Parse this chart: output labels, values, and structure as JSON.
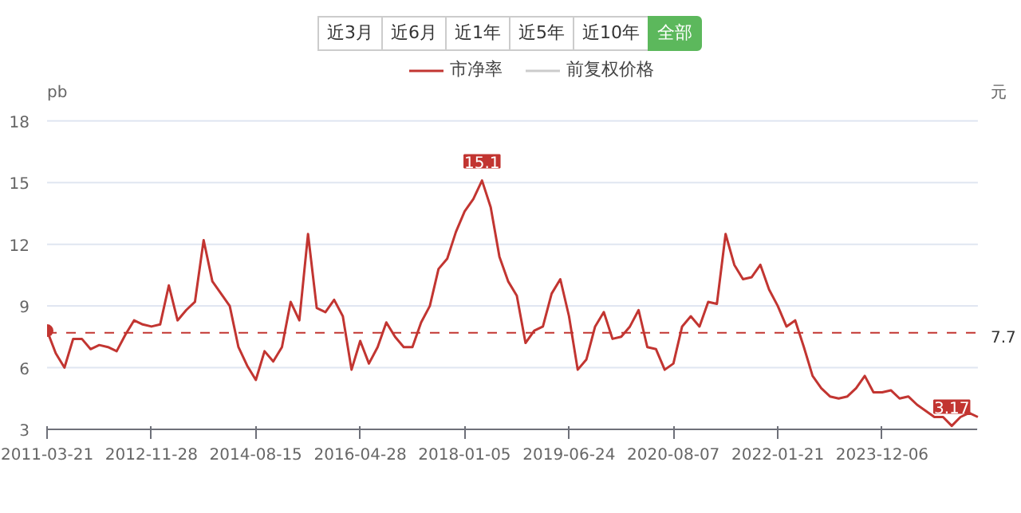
{
  "chart_data": {
    "type": "line",
    "ylabel": "pb",
    "y2label": "元",
    "legend": "top",
    "grid": "y",
    "annotations": [
      "近3月",
      "近6月",
      "近1年",
      "近5年",
      "近10年",
      "全部",
      {
        "text": "15.1",
        "y": 15.1
      },
      {
        "text": "3.17",
        "y": 3.17
      }
    ],
    "categories": [
      "2011-03-21",
      null,
      null,
      null,
      null,
      null,
      null,
      null,
      null,
      null,
      null,
      null,
      "2012-11-28",
      null,
      null,
      null,
      null,
      null,
      null,
      null,
      null,
      null,
      null,
      null,
      "2014-08-15",
      null,
      null,
      null,
      null,
      null,
      null,
      null,
      null,
      null,
      null,
      null,
      "2016-04-28",
      null,
      null,
      null,
      null,
      null,
      null,
      null,
      null,
      null,
      null,
      null,
      "2018-01-05",
      null,
      null,
      null,
      null,
      null,
      null,
      null,
      null,
      null,
      null,
      null,
      "2019-06-24",
      null,
      null,
      null,
      null,
      null,
      null,
      null,
      null,
      null,
      null,
      null,
      "2020-08-07",
      null,
      null,
      null,
      null,
      null,
      null,
      null,
      null,
      null,
      null,
      null,
      "2022-01-21",
      null,
      null,
      null,
      null,
      null,
      null,
      null,
      null,
      null,
      null,
      null,
      "2023-12-06",
      null,
      null,
      null,
      null,
      null,
      null,
      null,
      null,
      null,
      null,
      null
    ],
    "series": [
      {
        "name": "市净率",
        "color": "#c23531",
        "values": [
          7.8,
          6.7,
          6.0,
          7.4,
          7.4,
          6.9,
          7.1,
          7.0,
          6.8,
          7.6,
          8.3,
          8.1,
          8.0,
          8.1,
          10.0,
          8.3,
          8.8,
          9.2,
          12.2,
          10.2,
          9.6,
          9.0,
          7.0,
          6.1,
          5.4,
          6.8,
          6.3,
          7.0,
          9.2,
          8.3,
          12.5,
          8.9,
          8.7,
          9.3,
          8.5,
          5.9,
          7.3,
          6.2,
          7.0,
          8.2,
          7.5,
          7.0,
          7.0,
          8.2,
          9.0,
          10.8,
          11.3,
          12.6,
          13.6,
          14.2,
          15.1,
          13.8,
          11.4,
          10.2,
          9.5,
          7.2,
          7.8,
          8.0,
          9.6,
          10.3,
          8.5,
          5.9,
          6.4,
          8.0,
          8.7,
          7.4,
          7.5,
          8.0,
          8.8,
          7.0,
          6.9,
          5.9,
          6.2,
          8.0,
          8.5,
          8.0,
          9.2,
          9.1,
          12.5,
          11.0,
          10.3,
          10.4,
          11.0,
          9.8,
          9.0,
          8.0,
          8.3,
          7.0,
          5.6,
          5.0,
          4.6,
          4.5,
          4.6,
          5.0,
          5.6,
          4.8,
          4.8,
          4.9,
          4.5,
          4.6,
          4.2,
          3.9,
          3.6,
          3.6,
          3.17,
          3.6,
          3.8,
          3.6
        ]
      },
      {
        "name": "前复权价格",
        "color": "#cccccc",
        "values": [
          null,
          null,
          null,
          null,
          null,
          null,
          null,
          null,
          null,
          null,
          null,
          null,
          null,
          null,
          null,
          null,
          null,
          null,
          null,
          null,
          null,
          null,
          null,
          null,
          null,
          null,
          null,
          null,
          null,
          null,
          null,
          null,
          null,
          null,
          null,
          null,
          null,
          null,
          null,
          null,
          null,
          null,
          null,
          null,
          null,
          null,
          null,
          null,
          null,
          null,
          null,
          null,
          null,
          null,
          null,
          null,
          null,
          null,
          null,
          null,
          null,
          null,
          null,
          null,
          null,
          null,
          null,
          null,
          null,
          null,
          null,
          null,
          null,
          null,
          null,
          null,
          null,
          null,
          null,
          null,
          null,
          null,
          null,
          null,
          null,
          null,
          null,
          null,
          null,
          null,
          null,
          null,
          null,
          null,
          null,
          null,
          null,
          null,
          null,
          null,
          null,
          null,
          null,
          null,
          null,
          null,
          null,
          null
        ]
      }
    ],
    "ylim": [
      3,
      18
    ],
    "yticks": [
      3,
      6,
      9,
      12,
      15,
      18
    ],
    "ref_lines": [
      {
        "axis": "y",
        "value": 7.7,
        "label": "7.7",
        "color": "#c23531",
        "line_style": "dashed"
      }
    ]
  }
}
